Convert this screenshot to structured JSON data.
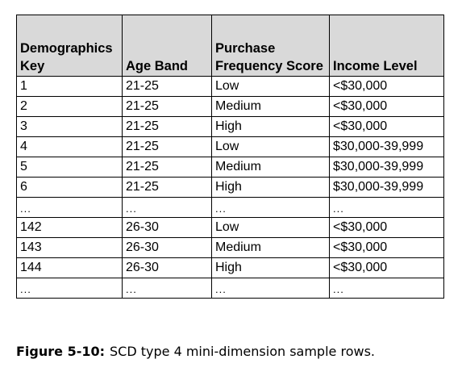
{
  "table": {
    "headers": [
      "Demographics Key",
      "Age Band",
      "Purchase Frequency Score",
      "Income Level"
    ],
    "rows": [
      [
        "1",
        "21-25",
        "Low",
        "<$30,000"
      ],
      [
        "2",
        "21-25",
        "Medium",
        "<$30,000"
      ],
      [
        "3",
        "21-25",
        "High",
        "<$30,000"
      ],
      [
        "4",
        "21-25",
        "Low",
        "$30,000-39,999"
      ],
      [
        "5",
        "21-25",
        "Medium",
        "$30,000-39,999"
      ],
      [
        "6",
        "21-25",
        "High",
        "$30,000-39,999"
      ],
      [
        "...",
        "...",
        "...",
        "..."
      ],
      [
        "142",
        "26-30",
        "Low",
        "<$30,000"
      ],
      [
        "143",
        "26-30",
        "Medium",
        "<$30,000"
      ],
      [
        "144",
        "26-30",
        "High",
        "<$30,000"
      ],
      [
        "...",
        "...",
        "...",
        "..."
      ]
    ]
  },
  "caption": {
    "label": "Figure 5-10:",
    "text": "SCD type 4 mini-dimension sample rows."
  }
}
